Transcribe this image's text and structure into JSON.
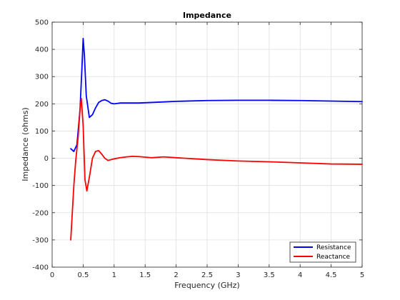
{
  "chart_data": {
    "type": "line",
    "title": "Impedance",
    "xlabel": "Frequency (GHz)",
    "ylabel": "Impedance (ohms)",
    "xlim": [
      0,
      5
    ],
    "ylim": [
      -400,
      500
    ],
    "xticks": [
      "0",
      "0.5",
      "1",
      "1.5",
      "2",
      "2.5",
      "3",
      "3.5",
      "4",
      "4.5",
      "5"
    ],
    "yticks": [
      "500",
      "400",
      "300",
      "200",
      "100",
      "0",
      "-100",
      "-200",
      "-300",
      "-400"
    ],
    "grid": true,
    "legend_position": "bottom-right",
    "series": [
      {
        "name": "Resistance",
        "color": "#0000ff",
        "x": [
          0.3,
          0.35,
          0.4,
          0.45,
          0.48,
          0.5,
          0.52,
          0.55,
          0.6,
          0.65,
          0.7,
          0.75,
          0.8,
          0.85,
          0.9,
          0.95,
          1.0,
          1.1,
          1.2,
          1.4,
          1.6,
          1.8,
          2.0,
          2.5,
          3.0,
          3.5,
          4.0,
          4.5,
          5.0
        ],
        "y": [
          35,
          25,
          50,
          180,
          330,
          440,
          380,
          230,
          150,
          160,
          185,
          205,
          212,
          215,
          210,
          202,
          200,
          203,
          203,
          203,
          205,
          207,
          209,
          212,
          213,
          213,
          212,
          210,
          208
        ]
      },
      {
        "name": "Reactance",
        "color": "#ff0000",
        "x": [
          0.3,
          0.32,
          0.35,
          0.38,
          0.42,
          0.45,
          0.47,
          0.5,
          0.53,
          0.56,
          0.6,
          0.65,
          0.7,
          0.75,
          0.8,
          0.85,
          0.9,
          0.95,
          1.0,
          1.1,
          1.2,
          1.3,
          1.4,
          1.5,
          1.6,
          1.8,
          2.0,
          2.5,
          3.0,
          3.5,
          4.0,
          4.5,
          5.0
        ],
        "y": [
          -300,
          -220,
          -100,
          -10,
          80,
          180,
          220,
          120,
          -80,
          -120,
          -70,
          0,
          25,
          28,
          15,
          0,
          -8,
          -5,
          -2,
          2,
          5,
          7,
          6,
          4,
          2,
          5,
          2,
          -5,
          -10,
          -13,
          -17,
          -21,
          -22
        ]
      }
    ]
  }
}
